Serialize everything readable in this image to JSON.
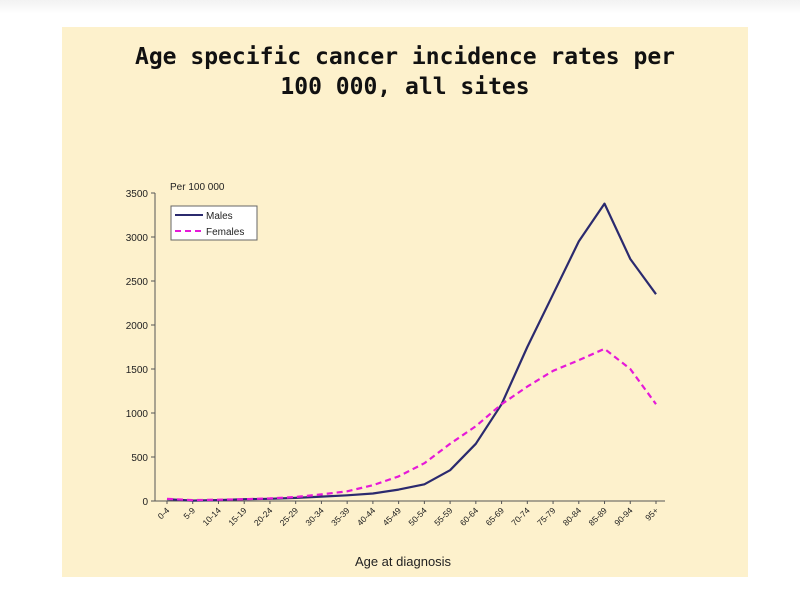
{
  "chart_data": {
    "type": "line",
    "title": "Age specific cancer incidence rates per 100 000, all sites",
    "title_lines": [
      "Age specific cancer incidence rates per",
      "100 000, all sites"
    ],
    "unit_label": "Per 100 000",
    "xlabel": "Age at diagnosis",
    "ylabel": "",
    "ylim": [
      0,
      3500
    ],
    "yticks": [
      0,
      500,
      1000,
      1500,
      2000,
      2500,
      3000,
      3500
    ],
    "categories": [
      "0-4",
      "5-9",
      "10-14",
      "15-19",
      "20-24",
      "25-29",
      "30-34",
      "35-39",
      "40-44",
      "45-49",
      "50-54",
      "55-59",
      "60-64",
      "65-69",
      "70-74",
      "75-79",
      "80-84",
      "85-89",
      "90-94",
      "95+"
    ],
    "series": [
      {
        "name": "Males",
        "color": "#2b2a6e",
        "dash": "solid",
        "values": [
          20,
          5,
          10,
          20,
          25,
          35,
          50,
          65,
          85,
          130,
          190,
          350,
          650,
          1100,
          1750,
          2350,
          2950,
          3380,
          2750,
          2350
        ]
      },
      {
        "name": "Females",
        "color": "#e619d8",
        "dash": "dashed",
        "values": [
          25,
          10,
          15,
          20,
          30,
          45,
          75,
          110,
          180,
          280,
          430,
          650,
          850,
          1100,
          1300,
          1480,
          1600,
          1730,
          1500,
          1100
        ]
      }
    ],
    "legend_position": "top-left",
    "grid": false
  }
}
